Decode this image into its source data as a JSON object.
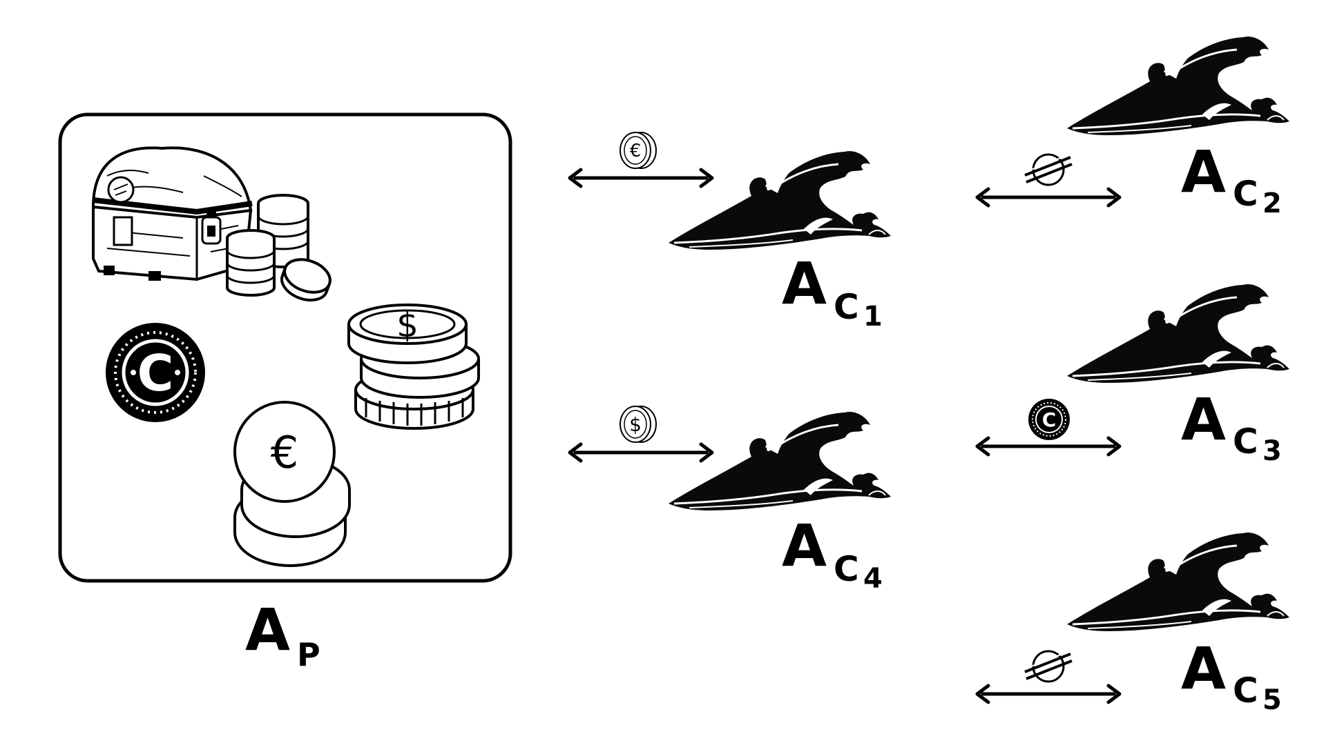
{
  "colors": {
    "ink": "#000000",
    "paper": "#ffffff",
    "wave_fill": "#0a0a0a"
  },
  "pool": {
    "label_main": "A",
    "label_sub": "P",
    "contents": [
      "treasure-chest-icon",
      "coin-stack-icon",
      "cardano-coin-icon",
      "dollar-coin-stack-icon",
      "euro-coin-stack-icon"
    ]
  },
  "channels": [
    {
      "label_main": "A",
      "label_sub_letter": "C",
      "label_index": "1",
      "token_icon": "euro-coin-icon",
      "token_symbol": "€"
    },
    {
      "label_main": "A",
      "label_sub_letter": "C",
      "label_index": "2",
      "token_icon": "stellar-icon",
      "token_symbol": ""
    },
    {
      "label_main": "A",
      "label_sub_letter": "C",
      "label_index": "3",
      "token_icon": "cardano-coin-icon",
      "token_symbol": "C"
    },
    {
      "label_main": "A",
      "label_sub_letter": "C",
      "label_index": "4",
      "token_icon": "dollar-coin-icon",
      "token_symbol": "$"
    },
    {
      "label_main": "A",
      "label_sub_letter": "C",
      "label_index": "5",
      "token_icon": "stellar-icon",
      "token_symbol": ""
    }
  ],
  "coin_symbols": {
    "dollar": "$",
    "euro": "€",
    "cardano": "C"
  }
}
